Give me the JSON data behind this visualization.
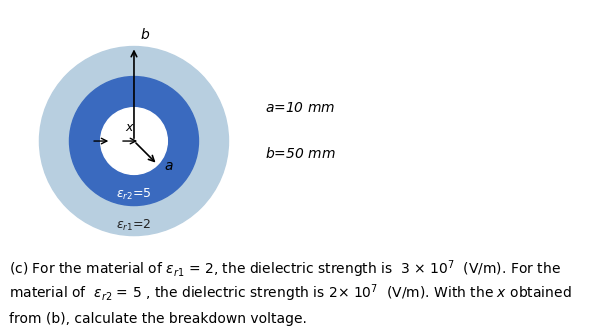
{
  "fig_width": 6.09,
  "fig_height": 3.28,
  "dpi": 100,
  "bg_color": "#ffffff",
  "outer_color": "#b8cfe0",
  "ring_color": "#3a6abf",
  "inner_hole_color": "#ffffff",
  "R_outer": 0.85,
  "R_mid": 0.58,
  "R_inner": 0.3,
  "label_a": "$a$",
  "label_b": "$b$",
  "label_x": "$x$",
  "label_er2": "$\\varepsilon_{r2}$=5",
  "label_er1": "$\\varepsilon_{r1}$=2",
  "annot_a": "$a$=10 mm",
  "annot_b": "$b$=50 mm",
  "text_line1": "(c) For the material of $\\varepsilon_{r1}$ = 2, the dielectric strength is  3 × 10$^{7}$  (V/m). For the",
  "text_line2": "material of  $\\varepsilon_{r2}$ = 5 , the dielectric strength is 2× 10$^{7}$  (V/m). With the $x$ obtained",
  "text_line3": "from (b), calculate the breakdown voltage.",
  "text_fontsize": 10.0
}
